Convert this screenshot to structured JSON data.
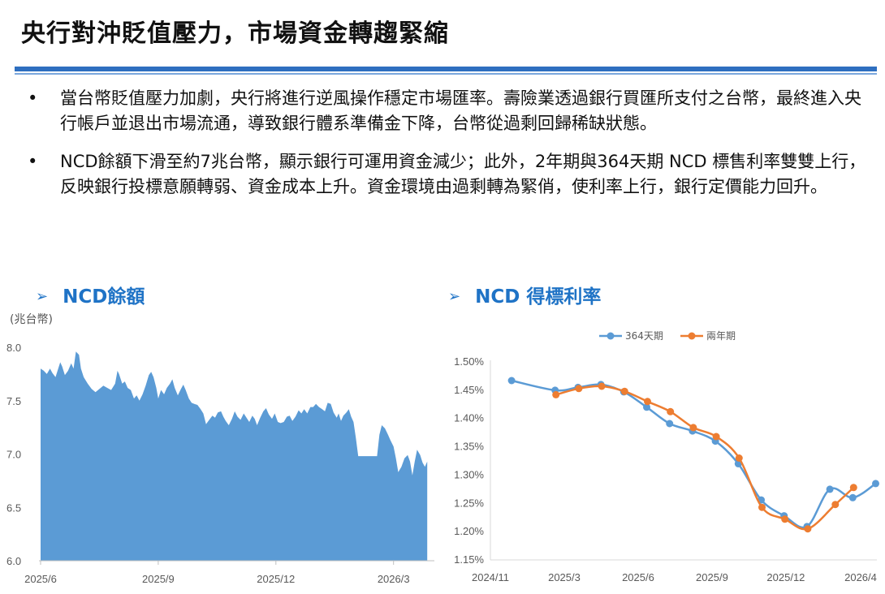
{
  "page": {
    "title": "央行對沖貶值壓力，市場資金轉趨緊縮",
    "bullets": [
      "當台幣貶值壓力加劇，央行將進行逆風操作穩定市場匯率。壽險業透過銀行買匯所支付之台幣，最終進入央行帳戶並退出市場流通，導致銀行體系準備金下降，台幣從過剩回歸稀缺狀態。",
      "NCD餘額下滑至約7兆台幣，顯示銀行可運用資金減少；此外，2年期與364天期 NCD 標售利率雙雙上行，反映銀行投標意願轉弱、資金成本上升。資金環境由過剩轉為緊俏，使利率上行，銀行定價能力回升。"
    ],
    "bullet_marker": "•",
    "arrow_glyph": "➢",
    "colors": {
      "accent": "#1f73c6",
      "rule": "#2e6fc0",
      "area": "#5b9bd5",
      "series364": "#5b9bd5",
      "series2y": "#ed7d31"
    }
  },
  "chart_data": [
    {
      "type": "area",
      "title": "NCD餘額",
      "ylabel": "(兆台幣)",
      "ylim": [
        6.0,
        8.0
      ],
      "yticks": [
        "6.0",
        "6.5",
        "7.0",
        "7.5",
        "8.0"
      ],
      "x_tick_labels": [
        "2025/6",
        "2025/9",
        "2025/12",
        "2026/3"
      ],
      "x_tick_positions": [
        0,
        3,
        6,
        9
      ],
      "x_range": [
        0,
        10.0
      ],
      "points": [
        [
          0.0,
          7.8
        ],
        [
          0.08,
          7.78
        ],
        [
          0.16,
          7.75
        ],
        [
          0.24,
          7.8
        ],
        [
          0.3,
          7.76
        ],
        [
          0.38,
          7.72
        ],
        [
          0.45,
          7.8
        ],
        [
          0.5,
          7.86
        ],
        [
          0.55,
          7.82
        ],
        [
          0.62,
          7.74
        ],
        [
          0.7,
          7.78
        ],
        [
          0.78,
          7.85
        ],
        [
          0.84,
          7.8
        ],
        [
          0.9,
          7.96
        ],
        [
          0.98,
          7.93
        ],
        [
          1.03,
          7.8
        ],
        [
          1.1,
          7.72
        ],
        [
          1.2,
          7.66
        ],
        [
          1.3,
          7.61
        ],
        [
          1.4,
          7.58
        ],
        [
          1.5,
          7.61
        ],
        [
          1.6,
          7.64
        ],
        [
          1.7,
          7.62
        ],
        [
          1.8,
          7.6
        ],
        [
          1.9,
          7.66
        ],
        [
          1.96,
          7.78
        ],
        [
          2.0,
          7.75
        ],
        [
          2.08,
          7.66
        ],
        [
          2.15,
          7.68
        ],
        [
          2.22,
          7.62
        ],
        [
          2.3,
          7.6
        ],
        [
          2.38,
          7.52
        ],
        [
          2.45,
          7.55
        ],
        [
          2.52,
          7.5
        ],
        [
          2.6,
          7.56
        ],
        [
          2.68,
          7.64
        ],
        [
          2.76,
          7.74
        ],
        [
          2.82,
          7.77
        ],
        [
          2.88,
          7.72
        ],
        [
          2.95,
          7.62
        ],
        [
          3.0,
          7.52
        ],
        [
          3.07,
          7.6
        ],
        [
          3.15,
          7.56
        ],
        [
          3.22,
          7.62
        ],
        [
          3.3,
          7.66
        ],
        [
          3.36,
          7.7
        ],
        [
          3.42,
          7.62
        ],
        [
          3.5,
          7.55
        ],
        [
          3.58,
          7.61
        ],
        [
          3.64,
          7.65
        ],
        [
          3.7,
          7.6
        ],
        [
          3.78,
          7.52
        ],
        [
          3.85,
          7.48
        ],
        [
          3.92,
          7.47
        ],
        [
          4.0,
          7.46
        ],
        [
          4.08,
          7.42
        ],
        [
          4.15,
          7.38
        ],
        [
          4.22,
          7.28
        ],
        [
          4.3,
          7.32
        ],
        [
          4.38,
          7.36
        ],
        [
          4.45,
          7.34
        ],
        [
          4.52,
          7.39
        ],
        [
          4.6,
          7.4
        ],
        [
          4.66,
          7.35
        ],
        [
          4.72,
          7.31
        ],
        [
          4.8,
          7.27
        ],
        [
          4.88,
          7.33
        ],
        [
          4.95,
          7.4
        ],
        [
          5.02,
          7.35
        ],
        [
          5.1,
          7.32
        ],
        [
          5.18,
          7.38
        ],
        [
          5.25,
          7.34
        ],
        [
          5.32,
          7.3
        ],
        [
          5.4,
          7.36
        ],
        [
          5.46,
          7.33
        ],
        [
          5.52,
          7.27
        ],
        [
          5.6,
          7.34
        ],
        [
          5.68,
          7.4
        ],
        [
          5.75,
          7.43
        ],
        [
          5.82,
          7.37
        ],
        [
          5.9,
          7.33
        ],
        [
          5.97,
          7.38
        ],
        [
          6.05,
          7.3
        ],
        [
          6.12,
          7.29
        ],
        [
          6.2,
          7.3
        ],
        [
          6.28,
          7.35
        ],
        [
          6.35,
          7.36
        ],
        [
          6.42,
          7.31
        ],
        [
          6.5,
          7.35
        ],
        [
          6.58,
          7.41
        ],
        [
          6.65,
          7.38
        ],
        [
          6.72,
          7.42
        ],
        [
          6.8,
          7.38
        ],
        [
          6.88,
          7.44
        ],
        [
          6.95,
          7.44
        ],
        [
          7.02,
          7.47
        ],
        [
          7.1,
          7.44
        ],
        [
          7.18,
          7.42
        ],
        [
          7.25,
          7.4
        ],
        [
          7.32,
          7.48
        ],
        [
          7.4,
          7.47
        ],
        [
          7.47,
          7.39
        ],
        [
          7.55,
          7.34
        ],
        [
          7.6,
          7.38
        ],
        [
          7.66,
          7.31
        ],
        [
          7.72,
          7.36
        ],
        [
          7.8,
          7.39
        ],
        [
          7.86,
          7.42
        ],
        [
          7.92,
          7.35
        ],
        [
          7.98,
          7.3
        ],
        [
          8.04,
          7.15
        ],
        [
          8.1,
          6.98
        ],
        [
          8.2,
          6.98
        ],
        [
          8.3,
          6.98
        ],
        [
          8.4,
          6.98
        ],
        [
          8.5,
          6.98
        ],
        [
          8.58,
          6.98
        ],
        [
          8.64,
          7.18
        ],
        [
          8.7,
          7.27
        ],
        [
          8.78,
          7.24
        ],
        [
          8.86,
          7.18
        ],
        [
          8.92,
          7.13
        ],
        [
          9.0,
          7.07
        ],
        [
          9.06,
          6.96
        ],
        [
          9.12,
          6.83
        ],
        [
          9.2,
          6.88
        ],
        [
          9.28,
          6.96
        ],
        [
          9.36,
          6.99
        ],
        [
          9.42,
          6.93
        ],
        [
          9.48,
          6.8
        ],
        [
          9.54,
          6.93
        ],
        [
          9.6,
          7.04
        ],
        [
          9.68,
          6.99
        ],
        [
          9.74,
          6.92
        ],
        [
          9.8,
          6.88
        ],
        [
          9.86,
          6.93
        ]
      ]
    },
    {
      "type": "line",
      "title": "NCD 得標利率",
      "ylim": [
        1.15,
        1.5
      ],
      "yticks": [
        "1.15%",
        "1.20%",
        "1.25%",
        "1.30%",
        "1.35%",
        "1.40%",
        "1.45%",
        "1.50%"
      ],
      "x_tick_labels": [
        "2024/11",
        "2025/3",
        "2025/6",
        "2025/9",
        "2025/12",
        "2026/4"
      ],
      "x_tick_positions": [
        0,
        3,
        6,
        9,
        12,
        15
      ],
      "x_range": [
        0,
        15
      ],
      "series": [
        {
          "name": "364天期",
          "color": "#5b9bd5",
          "points": [
            [
              1,
              1.467
            ],
            [
              2.9,
              1.45
            ],
            [
              3.9,
              1.455
            ],
            [
              4.9,
              1.46
            ],
            [
              5.9,
              1.447
            ],
            [
              6.9,
              1.42
            ],
            [
              7.9,
              1.391
            ],
            [
              8.9,
              1.378
            ],
            [
              9.9,
              1.36
            ],
            [
              10.9,
              1.32
            ],
            [
              11.9,
              1.256
            ],
            [
              12.9,
              1.228
            ],
            [
              13.9,
              1.209
            ],
            [
              14.9,
              1.275
            ],
            [
              15.9,
              1.26
            ],
            [
              16.9,
              1.285
            ]
          ]
        },
        {
          "name": "兩年期",
          "color": "#ed7d31",
          "points": [
            [
              3.0,
              1.442
            ],
            [
              4.0,
              1.453
            ],
            [
              5.0,
              1.457
            ],
            [
              6.0,
              1.448
            ],
            [
              7.0,
              1.43
            ],
            [
              8.0,
              1.412
            ],
            [
              9.0,
              1.384
            ],
            [
              10.0,
              1.368
            ],
            [
              11.0,
              1.33
            ],
            [
              12.0,
              1.243
            ],
            [
              13.0,
              1.222
            ],
            [
              14.0,
              1.205
            ],
            [
              15.2,
              1.248
            ],
            [
              16.0,
              1.278
            ]
          ]
        }
      ]
    }
  ]
}
